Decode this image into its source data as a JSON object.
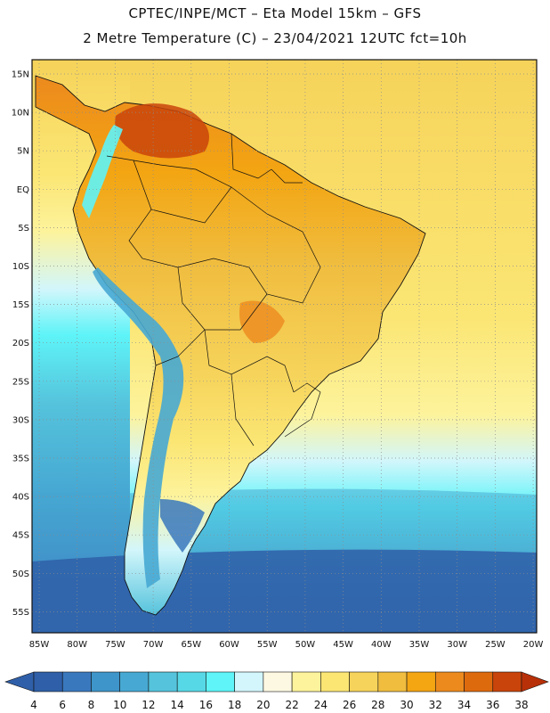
{
  "title_line1": "CPTEC/INPE/MCT –  Eta Model 15km – GFS",
  "title_line2": "2 Metre Temperature (C) – 23/04/2021 12UTC fct=10h",
  "lat_labels": [
    "15N",
    "10N",
    "5N",
    "EQ",
    "5S",
    "10S",
    "15S",
    "20S",
    "25S",
    "30S",
    "35S",
    "40S",
    "45S",
    "50S",
    "55S"
  ],
  "lon_labels": [
    "85W",
    "80W",
    "75W",
    "70W",
    "65W",
    "60W",
    "55W",
    "50W",
    "45W",
    "40W",
    "35W",
    "30W",
    "25W",
    "20W"
  ],
  "colorbar": {
    "ticks": [
      "4",
      "6",
      "8",
      "10",
      "12",
      "14",
      "16",
      "18",
      "20",
      "22",
      "24",
      "26",
      "28",
      "30",
      "32",
      "34",
      "36",
      "38"
    ],
    "colors": [
      "#2f5fa8",
      "#3a78bd",
      "#3e95c9",
      "#47a9d3",
      "#55c3dc",
      "#57d8e6",
      "#5ef4f8",
      "#d2f6fb",
      "#fdf8e2",
      "#fdf39c",
      "#fbe674",
      "#f6d35a",
      "#f0bd3f",
      "#f3a512",
      "#ec8a1e",
      "#de6a0e",
      "#c9440a",
      "#b83008"
    ]
  },
  "legend_colors": {
    "ocean_cold": "#2f5fa8",
    "ocean_mid": "#57d8e6",
    "ocean_warm": "#fbe674",
    "land_warm": "#f0bd3f",
    "land_hot": "#c9440a",
    "andes": "#47a9d3"
  }
}
